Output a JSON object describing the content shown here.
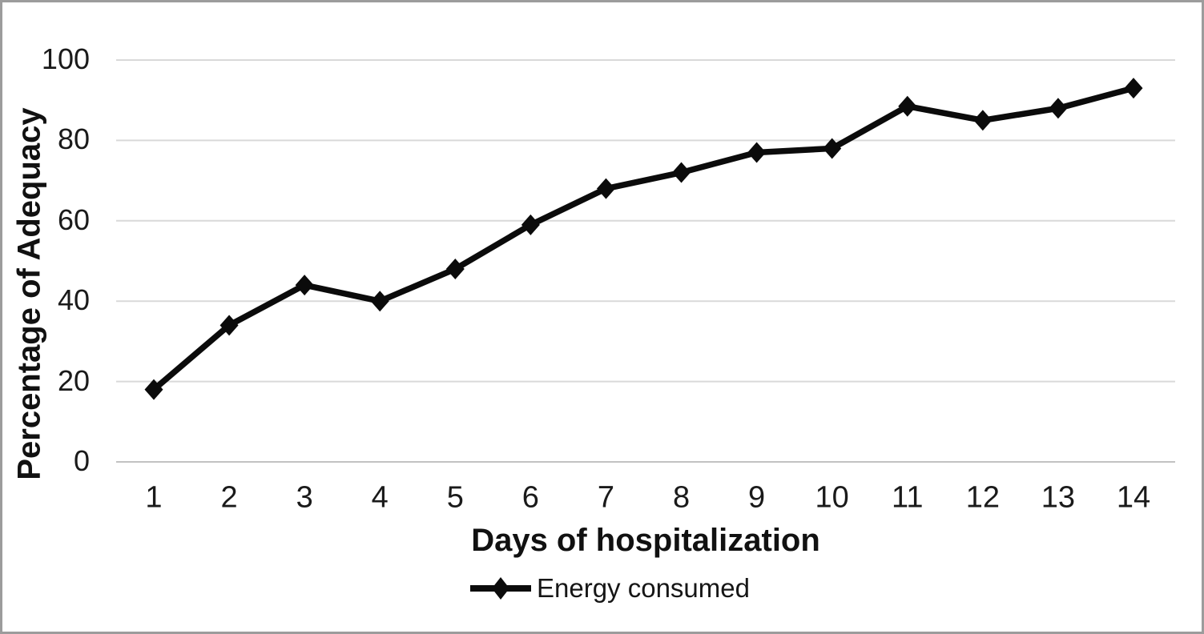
{
  "figure": {
    "background": "#ffffff",
    "frame_color": "#9c9c9c"
  },
  "chart_data": {
    "type": "line",
    "title": "",
    "xlabel": "Days of hospitalization",
    "ylabel": "Percentage of Adequacy",
    "x": [
      1,
      2,
      3,
      4,
      5,
      6,
      7,
      8,
      9,
      10,
      11,
      12,
      13,
      14
    ],
    "series": [
      {
        "name": "Energy consumed",
        "values": [
          18,
          34,
          44,
          40,
          48,
          59,
          68,
          72,
          77,
          78,
          88.5,
          85,
          88,
          93
        ],
        "color": "#0b0b0b",
        "marker": "diamond",
        "line_width": 7.5
      }
    ],
    "ylim": [
      0,
      100
    ],
    "yticks": [
      0,
      20,
      40,
      60,
      80,
      100
    ],
    "grid": "horizontal",
    "gridline_color": "#d9d9d9",
    "axis_line_color": "#c2c2c2",
    "tick_color": "#1a1a1a",
    "legend_position": "bottom"
  }
}
